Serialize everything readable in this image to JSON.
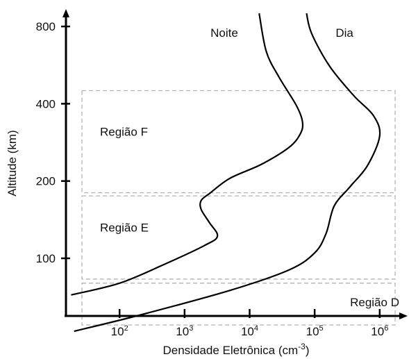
{
  "chart_data": {
    "type": "line",
    "xlabel": "Densidade Eletrônica (cm",
    "xlabel_sup": "-3",
    "xlabel_close": ")",
    "ylabel": "Altitude (km)",
    "x_scale": "log",
    "y_scale": "piecewise (tick spacing 100, 200, 400, 800 evenly spaced)",
    "xlim": [
      15,
      2000000
    ],
    "x_ticks": [
      {
        "value": 100,
        "base": "10",
        "exp": "2"
      },
      {
        "value": 1000,
        "base": "10",
        "exp": "3"
      },
      {
        "value": 10000,
        "base": "10",
        "exp": "4"
      },
      {
        "value": 100000,
        "base": "10",
        "exp": "5"
      },
      {
        "value": 1000000,
        "base": "10",
        "exp": "6"
      }
    ],
    "y_ticks": [
      {
        "value": 100,
        "label": "100"
      },
      {
        "value": 200,
        "label": "200"
      },
      {
        "value": 400,
        "label": "400"
      },
      {
        "value": 800,
        "label": "800"
      }
    ],
    "series": [
      {
        "name": "Noite",
        "points": [
          {
            "x": 18,
            "y": 72
          },
          {
            "x": 100,
            "y": 80
          },
          {
            "x": 500,
            "y": 95
          },
          {
            "x": 2000,
            "y": 112
          },
          {
            "x": 3200,
            "y": 122
          },
          {
            "x": 2400,
            "y": 138
          },
          {
            "x": 1800,
            "y": 155
          },
          {
            "x": 1800,
            "y": 168
          },
          {
            "x": 2500,
            "y": 180
          },
          {
            "x": 5000,
            "y": 205
          },
          {
            "x": 15000,
            "y": 232
          },
          {
            "x": 40000,
            "y": 270
          },
          {
            "x": 60000,
            "y": 305
          },
          {
            "x": 65000,
            "y": 340
          },
          {
            "x": 52000,
            "y": 395
          },
          {
            "x": 28000,
            "y": 510
          },
          {
            "x": 18000,
            "y": 640
          },
          {
            "x": 14000,
            "y": 900
          }
        ]
      },
      {
        "name": "Dia",
        "points": [
          {
            "x": 20,
            "y": 52
          },
          {
            "x": 200,
            "y": 60
          },
          {
            "x": 5000,
            "y": 75
          },
          {
            "x": 40000,
            "y": 90
          },
          {
            "x": 100000,
            "y": 105
          },
          {
            "x": 150000,
            "y": 125
          },
          {
            "x": 200000,
            "y": 160
          },
          {
            "x": 350000,
            "y": 190
          },
          {
            "x": 650000,
            "y": 230
          },
          {
            "x": 1000000,
            "y": 300
          },
          {
            "x": 800000,
            "y": 360
          },
          {
            "x": 400000,
            "y": 430
          },
          {
            "x": 170000,
            "y": 560
          },
          {
            "x": 90000,
            "y": 750
          },
          {
            "x": 75000,
            "y": 900
          }
        ]
      }
    ],
    "regions": [
      {
        "name": "Região F",
        "x_range": [
          15,
          2000000
        ],
        "y_range": [
          180,
          450
        ],
        "label_value": {
          "x": 50,
          "y": 300
        }
      },
      {
        "name": "Região E",
        "x_range": [
          15,
          2000000
        ],
        "y_range": [
          83,
          175
        ],
        "label_value": {
          "x": 50,
          "y": 127
        }
      },
      {
        "name": "Região D",
        "x_range": [
          15,
          2000000
        ],
        "y_range": [
          55,
          80
        ],
        "label_value": {
          "x": 350000,
          "y": 65
        }
      }
    ],
    "series_labels": [
      {
        "name": "Noite",
        "x": 2500,
        "y": 730
      },
      {
        "name": "Dia",
        "x": 210000,
        "y": 730
      }
    ]
  }
}
